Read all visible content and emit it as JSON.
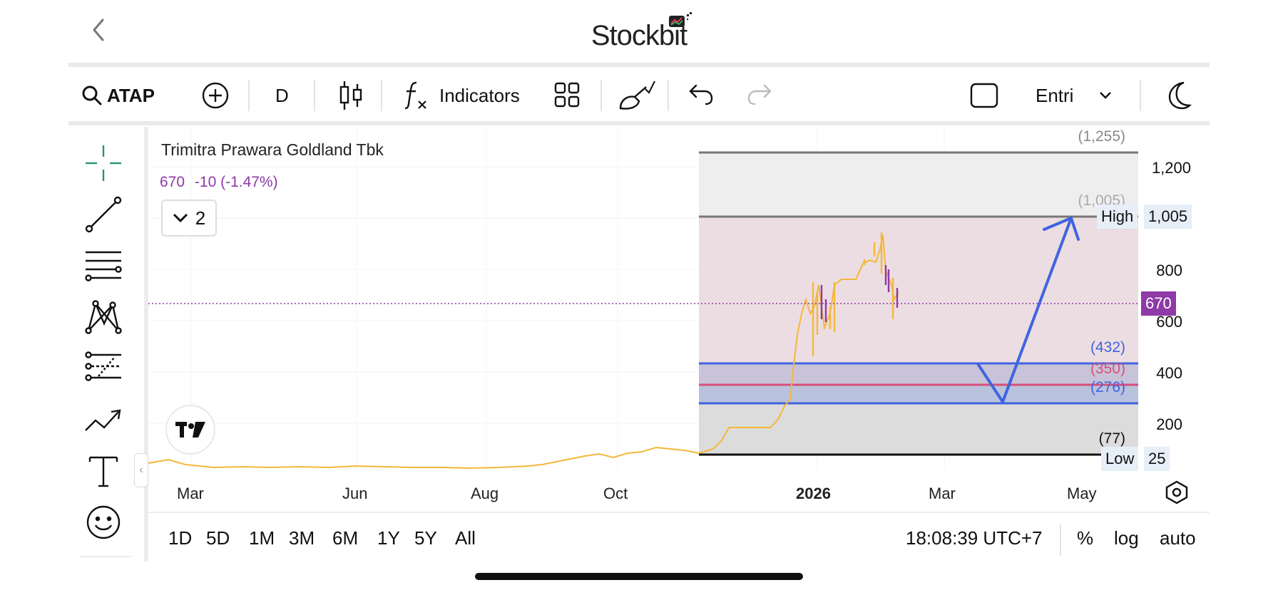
{
  "header": {
    "back_icon": "chevron-left-icon",
    "logo_text": "Stockbit"
  },
  "toolbar": {
    "symbol": "ATAP",
    "interval": "D",
    "indicators_label": "Indicators",
    "order_label": "Entri"
  },
  "chart": {
    "stock_name": "Trimitra Prawara Goldland Tbk",
    "last_price": "670",
    "change": "-10 (-1.47%)",
    "collapse_count": "2",
    "y_ticks": [
      "1,200",
      "800",
      "600",
      "400",
      "200"
    ],
    "x_ticks": [
      "Mar",
      "Jun",
      "Aug",
      "Oct",
      "2026",
      "Mar",
      "May"
    ],
    "price_tag": "670",
    "high_label": "High",
    "high_value": "1,005",
    "low_label": "Low",
    "low_value": "25",
    "fib_labels": [
      "(1,255)",
      "(1,005)",
      "(432)",
      "(350)",
      "(276)",
      "(77)"
    ],
    "colors": {
      "up": "#f4b73a",
      "down": "#8e3aa7",
      "projection": "#3f64e0",
      "mid_line": "#d94f7a",
      "price_tag_bg": "#8e3aa7"
    }
  },
  "chart_data": {
    "type": "line",
    "title": "Trimitra Prawara Goldland Tbk",
    "x": [
      "Mar",
      "Jun",
      "Aug",
      "Oct",
      "2026",
      "Mar",
      "May"
    ],
    "series": [
      {
        "values": [
          85,
          70,
          70,
          72,
          100,
          670,
          null
        ]
      }
    ],
    "ylim": [
      0,
      1300
    ],
    "last_price": 670,
    "levels": {
      "high": 1005,
      "low": 25,
      "fib": [
        1255,
        1005,
        432,
        350,
        276,
        77
      ]
    }
  },
  "bottom_bar": {
    "ranges": [
      "1D",
      "5D",
      "1M",
      "3M",
      "6M",
      "1Y",
      "5Y",
      "All"
    ],
    "clock": "18:08:39 UTC+7",
    "percent": "%",
    "log": "log",
    "auto": "auto"
  }
}
